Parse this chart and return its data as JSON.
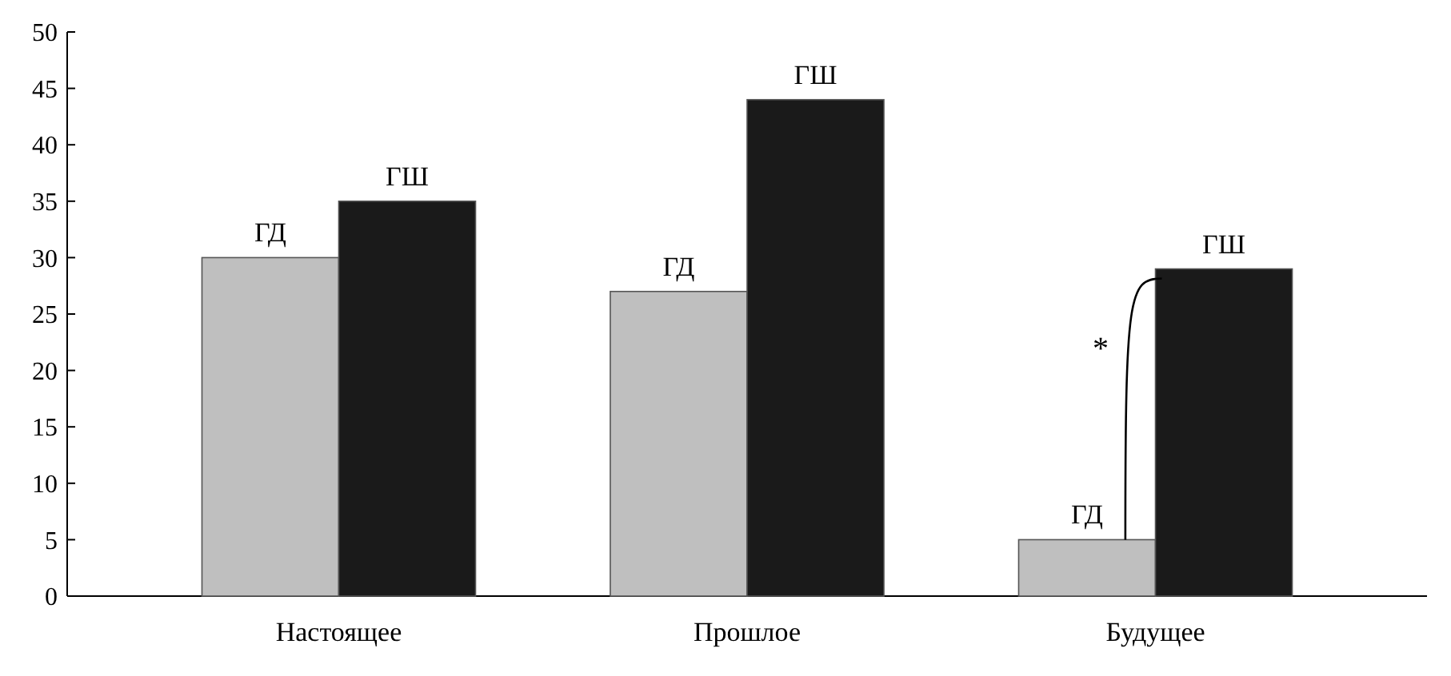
{
  "chart_data": {
    "type": "bar",
    "categories": [
      "Настоящее",
      "Прошлое",
      "Будущее"
    ],
    "series": [
      {
        "name": "ГД",
        "color": "#bfbfbf",
        "values": [
          30,
          27,
          5
        ]
      },
      {
        "name": "ГШ",
        "color": "#1a1a1a",
        "values": [
          35,
          44,
          29
        ]
      }
    ],
    "ylim": [
      0,
      50
    ],
    "yticks": [
      0,
      5,
      10,
      15,
      20,
      25,
      30,
      35,
      40,
      45,
      50
    ],
    "grid": false,
    "annotations": [
      {
        "text": "*",
        "x": "Будущее",
        "y": 22
      }
    ]
  }
}
